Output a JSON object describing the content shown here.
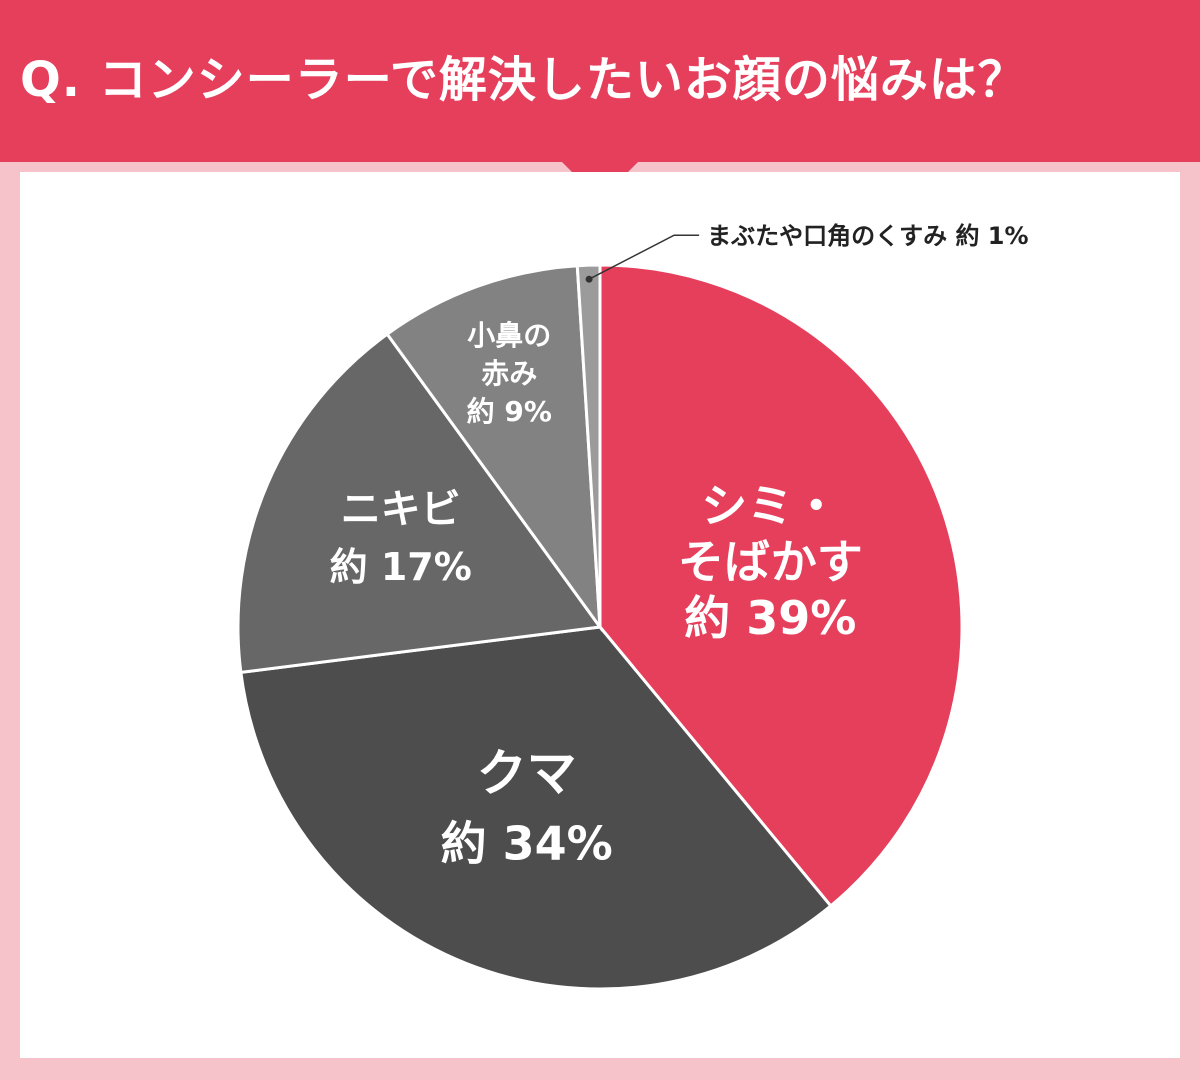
{
  "title": "Q. コンシーラーで解決したいお顔の悩みは？",
  "colors": {
    "banner": "#e63f5c",
    "background": "#f7c3cb",
    "panel": "#ffffff"
  },
  "chart_data": {
    "type": "pie",
    "start": "12 o'clock",
    "direction": "clockwise",
    "slices": [
      {
        "lines": [
          "シミ・",
          "そばかす"
        ],
        "value_label": "約 39%",
        "value": 39,
        "color": "#e63f5c"
      },
      {
        "lines": [
          "クマ"
        ],
        "value_label": "約 34%",
        "value": 34,
        "color": "#4d4d4d"
      },
      {
        "lines": [
          "ニキビ"
        ],
        "value_label": "約 17%",
        "value": 17,
        "color": "#676767"
      },
      {
        "lines": [
          "小鼻の",
          "赤み"
        ],
        "value_label": "約 9%",
        "value": 9,
        "color": "#828282"
      },
      {
        "lines": [
          "まぶたや口角のくすみ"
        ],
        "value_label": "約 1%",
        "value": 1,
        "color": "#9b9b9b",
        "callout": true
      }
    ]
  }
}
